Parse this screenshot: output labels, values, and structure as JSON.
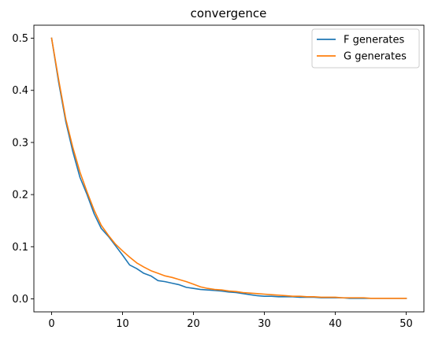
{
  "chart_data": {
    "type": "line",
    "title": "convergence",
    "xlabel": "",
    "ylabel": "",
    "xlim": [
      -2.5,
      52.5
    ],
    "ylim": [
      -0.025,
      0.525
    ],
    "xticks": [
      0,
      10,
      20,
      30,
      40,
      50
    ],
    "yticks": [
      0.0,
      0.1,
      0.2,
      0.3,
      0.4,
      0.5
    ],
    "xtick_labels": [
      "0",
      "10",
      "20",
      "30",
      "40",
      "50"
    ],
    "ytick_labels": [
      "0.0",
      "0.1",
      "0.2",
      "0.3",
      "0.4",
      "0.5"
    ],
    "grid": false,
    "legend_position": "top-right",
    "x": [
      0,
      1,
      2,
      3,
      4,
      5,
      6,
      7,
      8,
      9,
      10,
      11,
      12,
      13,
      14,
      15,
      16,
      17,
      18,
      19,
      20,
      21,
      22,
      23,
      24,
      25,
      26,
      27,
      28,
      29,
      30,
      31,
      32,
      33,
      34,
      35,
      36,
      37,
      38,
      39,
      40,
      41,
      42,
      43,
      44,
      45,
      46,
      47,
      48,
      49,
      50
    ],
    "series": [
      {
        "name": "F generates",
        "color": "#1f77b4",
        "values": [
          0.5,
          0.415,
          0.34,
          0.282,
          0.233,
          0.2,
          0.163,
          0.135,
          0.12,
          0.102,
          0.084,
          0.065,
          0.058,
          0.049,
          0.044,
          0.035,
          0.033,
          0.03,
          0.027,
          0.022,
          0.02,
          0.018,
          0.017,
          0.016,
          0.015,
          0.013,
          0.012,
          0.01,
          0.008,
          0.006,
          0.005,
          0.005,
          0.004,
          0.004,
          0.004,
          0.003,
          0.003,
          0.003,
          0.002,
          0.002,
          0.002,
          0.002,
          0.001,
          0.001,
          0.001,
          0.001,
          0.001,
          0.001,
          0.001,
          0.001,
          0.001
        ]
      },
      {
        "name": "G generates",
        "color": "#ff7f0e",
        "values": [
          0.5,
          0.42,
          0.345,
          0.29,
          0.243,
          0.205,
          0.17,
          0.141,
          0.122,
          0.105,
          0.092,
          0.08,
          0.069,
          0.061,
          0.054,
          0.049,
          0.044,
          0.041,
          0.037,
          0.033,
          0.028,
          0.023,
          0.02,
          0.018,
          0.017,
          0.015,
          0.014,
          0.012,
          0.011,
          0.01,
          0.009,
          0.008,
          0.007,
          0.006,
          0.005,
          0.005,
          0.004,
          0.004,
          0.003,
          0.003,
          0.003,
          0.002,
          0.002,
          0.002,
          0.002,
          0.001,
          0.001,
          0.001,
          0.001,
          0.001,
          0.001
        ]
      }
    ]
  }
}
